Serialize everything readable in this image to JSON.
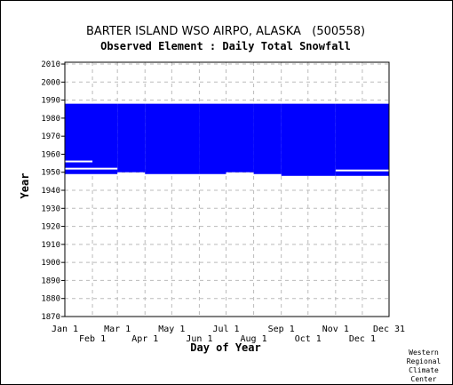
{
  "chart_data": {
    "type": "area",
    "title": "BARTER ISLAND WSO AIRPO, ALASKA   (500558)",
    "subtitle": "Observed Element : Daily Total Snowfall",
    "xlabel": "Day of Year",
    "ylabel": "Year",
    "ylim": [
      1870,
      2011
    ],
    "yticks": [
      1870,
      1880,
      1890,
      1900,
      1910,
      1920,
      1930,
      1940,
      1950,
      1960,
      1970,
      1980,
      1990,
      2000,
      2010
    ],
    "xlim": [
      "Jan 1",
      "Dec 31"
    ],
    "xticks_top_row": [
      "Jan 1",
      "Mar 1",
      "May 1",
      "Jul 1",
      "Sep 1",
      "Nov 1",
      "Dec 31"
    ],
    "xticks_bottom_row": [
      "Feb 1",
      "Apr 1",
      "Jun 1",
      "Aug 1",
      "Oct 1",
      "Dec 1"
    ],
    "grid": true,
    "fill_color": "#0000ff",
    "series": [
      {
        "segments": [
          {
            "from": "Jan 1",
            "to": "Mar 1",
            "start_year": 1949,
            "end_year": 1988
          },
          {
            "from": "Mar 1",
            "to": "Apr 1",
            "start_year": 1950,
            "end_year": 1988
          },
          {
            "from": "Apr 1",
            "to": "Jun 1",
            "start_year": 1949,
            "end_year": 1988
          },
          {
            "from": "Jun 1",
            "to": "Jul 1",
            "start_year": 1949,
            "end_year": 1988
          },
          {
            "from": "Jul 1",
            "to": "Aug 1",
            "start_year": 1950,
            "end_year": 1988
          },
          {
            "from": "Aug 1",
            "to": "Sep 1",
            "start_year": 1949,
            "end_year": 1988
          },
          {
            "from": "Sep 1",
            "to": "Nov 1",
            "start_year": 1948,
            "end_year": 1988
          },
          {
            "from": "Nov 1",
            "to": "Dec 31",
            "start_year": 1948,
            "end_year": 1988
          }
        ],
        "missing": [
          {
            "from": "Jan 1",
            "to": "Mar 1",
            "year": 1952
          },
          {
            "from": "Jan 1",
            "to": "Feb 1",
            "year": 1956
          },
          {
            "from": "Nov 1",
            "to": "Dec 31",
            "year": 1951
          }
        ]
      }
    ]
  },
  "credit": [
    "Western",
    "Regional",
    "Climate",
    "Center"
  ]
}
